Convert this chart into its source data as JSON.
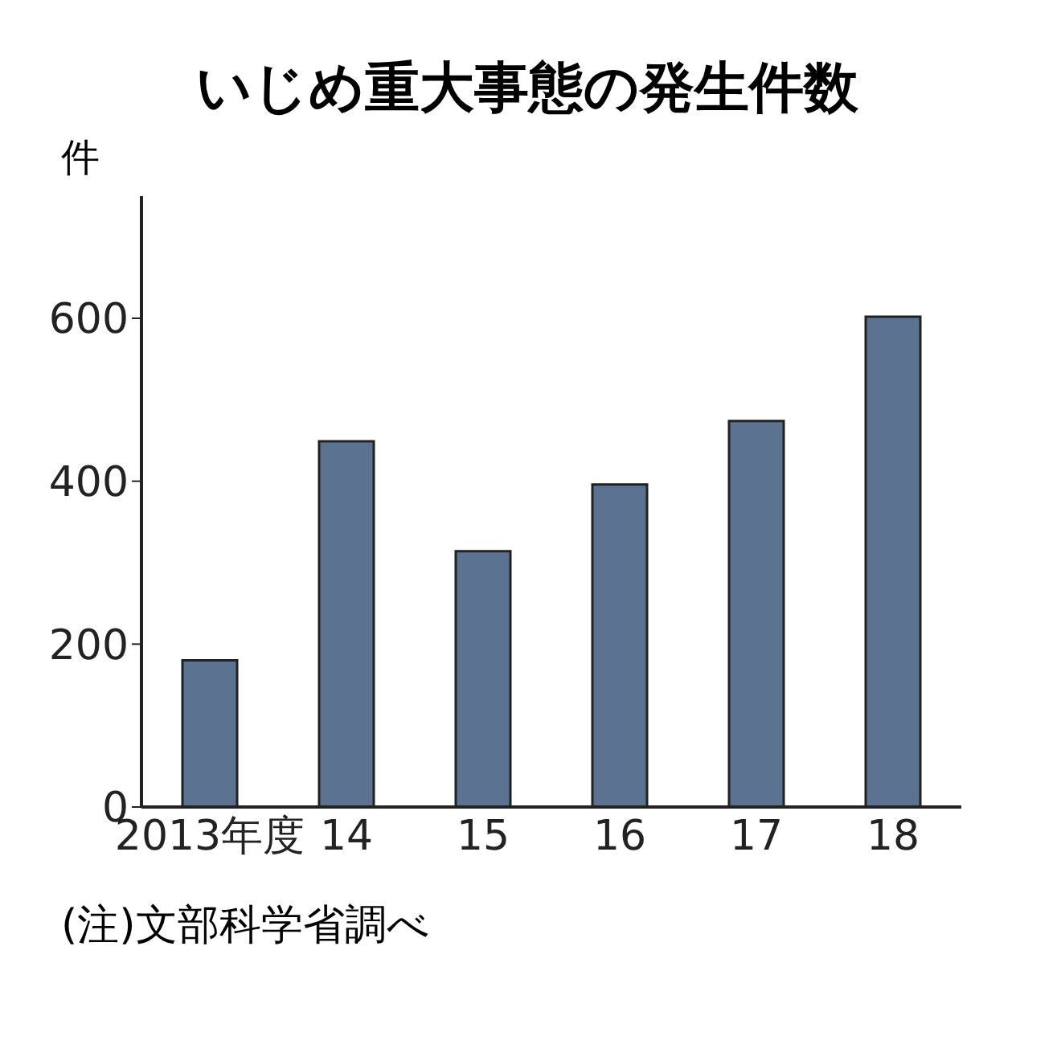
{
  "chart_data": {
    "type": "bar",
    "title": "いじめ重大事態の発生件数",
    "ylabel": "件",
    "categories": [
      "2013年度",
      "14",
      "15",
      "16",
      "17",
      "18"
    ],
    "values": [
      180,
      449,
      314,
      396,
      474,
      602
    ],
    "color": "#5b7391",
    "ylim": [
      0,
      750
    ],
    "yticks": [
      0,
      200,
      400,
      600
    ],
    "grid": false,
    "annotations": [
      "(注)文部科学省調べ"
    ]
  }
}
